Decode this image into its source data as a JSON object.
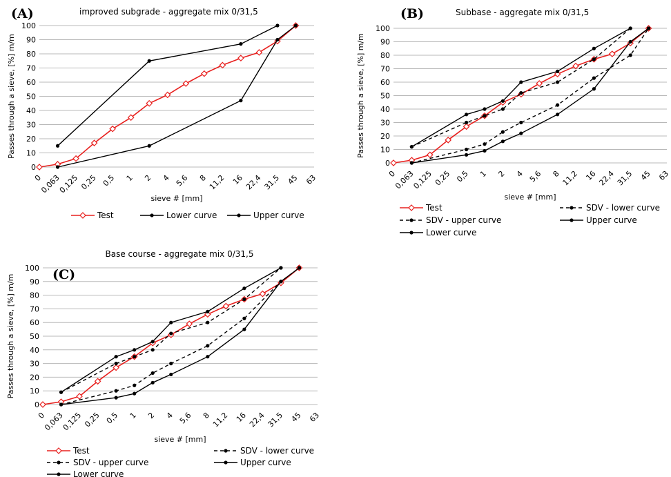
{
  "chart_data": [
    {
      "type": "line",
      "panel_label": "(A)",
      "title": "improved subgrade - aggregate mix 0/31,5",
      "xlabel": "sieve # [mm]",
      "ylabel": "Passes through a sieve,  [%] m/m",
      "categories": [
        "0",
        "0,063",
        "0,125",
        "0,25",
        "0,5",
        "1",
        "2",
        "4",
        "5,6",
        "8",
        "11,2",
        "16",
        "22,4",
        "31,5",
        "45",
        "63"
      ],
      "yticks": [
        0,
        10,
        20,
        30,
        40,
        50,
        60,
        70,
        80,
        90,
        100
      ],
      "ylim": [
        0,
        100
      ],
      "grid": "horizontal",
      "legend_position": "bottom",
      "series": [
        {
          "name": "Test",
          "color": "#e8201e",
          "dash": "solid",
          "marker": "open-diamond",
          "points": [
            [
              0,
              0
            ],
            [
              1,
              2
            ],
            [
              2,
              6
            ],
            [
              3,
              17
            ],
            [
              4,
              27
            ],
            [
              5,
              35
            ],
            [
              6,
              45
            ],
            [
              7,
              51
            ],
            [
              8,
              59
            ],
            [
              9,
              66
            ],
            [
              10,
              72
            ],
            [
              11,
              77
            ],
            [
              12,
              81
            ],
            [
              13,
              89
            ],
            [
              14,
              100
            ]
          ]
        },
        {
          "name": "Lower curve",
          "color": "#000000",
          "dash": "solid",
          "marker": "dot",
          "points": [
            [
              1,
              0
            ],
            [
              6,
              15
            ],
            [
              11,
              47
            ],
            [
              13,
              90
            ],
            [
              14,
              100
            ]
          ]
        },
        {
          "name": "Upper curve",
          "color": "#000000",
          "dash": "solid",
          "marker": "dot",
          "points": [
            [
              1,
              15
            ],
            [
              6,
              75
            ],
            [
              11,
              87
            ],
            [
              13,
              100
            ]
          ]
        }
      ]
    },
    {
      "type": "line",
      "panel_label": "(B)",
      "title": "Subbase - aggregate mix 0/31,5",
      "xlabel": "sieve # [mm]",
      "ylabel": "Passes through a sieve,  [%] m/m",
      "categories": [
        "0",
        "0,063",
        "0,125",
        "0,25",
        "0,5",
        "1",
        "2",
        "4",
        "5,6",
        "8",
        "11,2",
        "16",
        "22,4",
        "31,5",
        "45",
        "63"
      ],
      "yticks": [
        0,
        10,
        20,
        30,
        40,
        50,
        60,
        70,
        80,
        90,
        100
      ],
      "ylim": [
        0,
        100
      ],
      "grid": "horizontal",
      "legend_position": "bottom",
      "series": [
        {
          "name": "Test",
          "color": "#e8201e",
          "dash": "solid",
          "marker": "open-diamond",
          "points": [
            [
              0,
              0
            ],
            [
              1,
              2
            ],
            [
              2,
              6
            ],
            [
              3,
              17
            ],
            [
              4,
              27
            ],
            [
              5,
              35
            ],
            [
              6,
              45
            ],
            [
              7,
              51
            ],
            [
              8,
              59
            ],
            [
              9,
              66
            ],
            [
              10,
              72
            ],
            [
              11,
              77
            ],
            [
              12,
              81
            ],
            [
              13,
              89
            ],
            [
              14,
              100
            ]
          ]
        },
        {
          "name": "SDV - lower curve",
          "color": "#000000",
          "dash": "dashed",
          "marker": "dot",
          "points": [
            [
              1,
              0
            ],
            [
              4,
              10
            ],
            [
              5,
              14
            ],
            [
              6,
              23
            ],
            [
              7,
              30
            ],
            [
              9,
              43
            ],
            [
              11,
              63
            ],
            [
              13,
              80
            ],
            [
              14,
              100
            ]
          ]
        },
        {
          "name": "SDV - upper curve",
          "color": "#000000",
          "dash": "dashed",
          "marker": "dot",
          "points": [
            [
              1,
              12
            ],
            [
              4,
              30
            ],
            [
              5,
              35
            ],
            [
              6,
              40
            ],
            [
              7,
              52
            ],
            [
              9,
              60
            ],
            [
              11,
              77
            ],
            [
              13,
              100
            ]
          ]
        },
        {
          "name": "Upper curve",
          "color": "#000000",
          "dash": "solid",
          "marker": "dot",
          "points": [
            [
              1,
              12
            ],
            [
              4,
              36
            ],
            [
              5,
              40
            ],
            [
              6,
              46
            ],
            [
              7,
              60
            ],
            [
              9,
              68
            ],
            [
              11,
              85
            ],
            [
              13,
              100
            ]
          ]
        },
        {
          "name": "Lower curve",
          "color": "#000000",
          "dash": "solid",
          "marker": "dot",
          "points": [
            [
              1,
              0
            ],
            [
              4,
              6
            ],
            [
              5,
              9
            ],
            [
              6,
              16
            ],
            [
              7,
              22
            ],
            [
              9,
              36
            ],
            [
              11,
              55
            ],
            [
              13,
              90
            ],
            [
              14,
              100
            ]
          ]
        }
      ]
    },
    {
      "type": "line",
      "panel_label": "(C)",
      "title": "Base course - aggregate mix 0/31,5",
      "xlabel": "sieve # [mm]",
      "ylabel": "Passes through a sieve,  [%] m/m",
      "categories": [
        "0",
        "0,063",
        "0,125",
        "0,25",
        "0,5",
        "1",
        "2",
        "4",
        "5,6",
        "8",
        "11,2",
        "16",
        "22,4",
        "31,5",
        "45",
        "63"
      ],
      "yticks": [
        0,
        10,
        20,
        30,
        40,
        50,
        60,
        70,
        80,
        90,
        100
      ],
      "ylim": [
        0,
        100
      ],
      "grid": "horizontal",
      "legend_position": "bottom",
      "series": [
        {
          "name": "Test",
          "color": "#e8201e",
          "dash": "solid",
          "marker": "open-diamond",
          "points": [
            [
              0,
              0
            ],
            [
              1,
              2
            ],
            [
              2,
              6
            ],
            [
              3,
              17
            ],
            [
              4,
              27
            ],
            [
              5,
              35
            ],
            [
              6,
              45
            ],
            [
              7,
              51
            ],
            [
              8,
              59
            ],
            [
              9,
              66
            ],
            [
              10,
              72
            ],
            [
              11,
              77
            ],
            [
              12,
              81
            ],
            [
              13,
              89
            ],
            [
              14,
              100
            ]
          ]
        },
        {
          "name": "SDV - lower curve",
          "color": "#000000",
          "dash": "dashed",
          "marker": "dot",
          "points": [
            [
              1,
              0
            ],
            [
              4,
              10
            ],
            [
              5,
              14
            ],
            [
              6,
              23
            ],
            [
              7,
              30
            ],
            [
              9,
              43
            ],
            [
              11,
              63
            ],
            [
              13,
              90
            ],
            [
              14,
              100
            ]
          ]
        },
        {
          "name": "SDV - upper curve",
          "color": "#000000",
          "dash": "dashed",
          "marker": "dot",
          "points": [
            [
              1,
              9
            ],
            [
              4,
              30
            ],
            [
              5,
              35
            ],
            [
              6,
              40
            ],
            [
              7,
              52
            ],
            [
              9,
              60
            ],
            [
              11,
              77
            ],
            [
              13,
              100
            ]
          ]
        },
        {
          "name": "Upper curve",
          "color": "#000000",
          "dash": "solid",
          "marker": "dot",
          "points": [
            [
              1,
              9
            ],
            [
              4,
              35
            ],
            [
              5,
              40
            ],
            [
              6,
              46
            ],
            [
              7,
              60
            ],
            [
              9,
              68
            ],
            [
              11,
              85
            ],
            [
              13,
              100
            ]
          ]
        },
        {
          "name": "Lower curve",
          "color": "#000000",
          "dash": "solid",
          "marker": "dot",
          "points": [
            [
              1,
              0
            ],
            [
              4,
              5
            ],
            [
              5,
              8
            ],
            [
              6,
              16
            ],
            [
              7,
              22
            ],
            [
              9,
              35
            ],
            [
              11,
              55
            ],
            [
              13,
              90
            ],
            [
              14,
              100
            ]
          ]
        }
      ]
    }
  ]
}
